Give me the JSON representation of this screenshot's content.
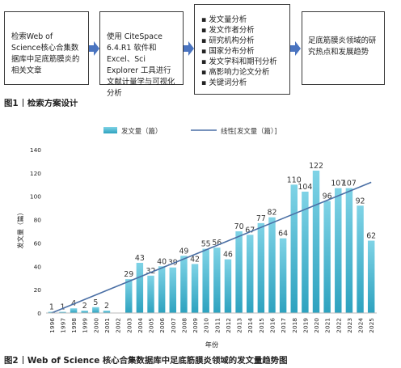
{
  "figure1": {
    "box1": "检索Web of Science核心合集数据库中足底筋膜炎的相关文章",
    "box2": "使用 CiteSpace 6.4.R1 软件和 Excel、Sci Explorer 工具进行文献计量学与可视化分析",
    "box3_items": [
      "发文量分析",
      "发文作者分析",
      "研究机构分析",
      "国家分布分析",
      "发文学科和期刊分析",
      "高影响力论文分析",
      "关键词分析"
    ],
    "box4": "足底筋膜炎领域的研究热点和发展趋势",
    "caption_num": "图1",
    "caption_text": "检索方案设计"
  },
  "figure2": {
    "caption_num": "图2",
    "caption_text": "Web of Science 核心合集数据库中足底筋膜炎领域的发文量趋势图"
  },
  "colors": {
    "bar_top": "#7fd3e6",
    "bar_bottom": "#2da2bf",
    "trendline": "#4a6fa5",
    "box_border": "#3a3a3a",
    "arrow": "#4a74c0"
  },
  "chart_data": {
    "type": "bar",
    "categories": [
      "1996",
      "1997",
      "1998",
      "1999",
      "2000",
      "2001",
      "2002",
      "2003",
      "2004",
      "2005",
      "2006",
      "2007",
      "2008",
      "2009",
      "2010",
      "2011",
      "2012",
      "2013",
      "2014",
      "2015",
      "2016",
      "2017",
      "2018",
      "2019",
      "2020",
      "2021",
      "2022",
      "2023",
      "2024",
      "2025"
    ],
    "series": [
      {
        "name": "发文量（篇）",
        "values": [
          1,
          1,
          4,
          2,
          5,
          2,
          0,
          29,
          43,
          32,
          40,
          39,
          49,
          42,
          55,
          56,
          46,
          70,
          67,
          77,
          82,
          64,
          110,
          104,
          122,
          96,
          107,
          107,
          92,
          62
        ]
      }
    ],
    "trendline": {
      "name": "线性[发文量（篇）]",
      "from": 0,
      "to": 112
    },
    "data_labels": [
      "1",
      "1",
      "4",
      "2",
      "5",
      "2",
      "",
      "29",
      "43",
      "32",
      "40",
      "39",
      "49",
      "42",
      "55",
      "56",
      "46",
      "70",
      "67",
      "77",
      "82",
      "64",
      "110",
      "104",
      "122",
      "96",
      "107",
      "107",
      "92",
      "62"
    ],
    "xlabel": "年份",
    "ylabel": "发文量（篇）",
    "ylim": [
      0,
      140
    ],
    "yticks": [
      0,
      20,
      40,
      60,
      80,
      100,
      120,
      140
    ],
    "grid": false,
    "legend": "top"
  }
}
